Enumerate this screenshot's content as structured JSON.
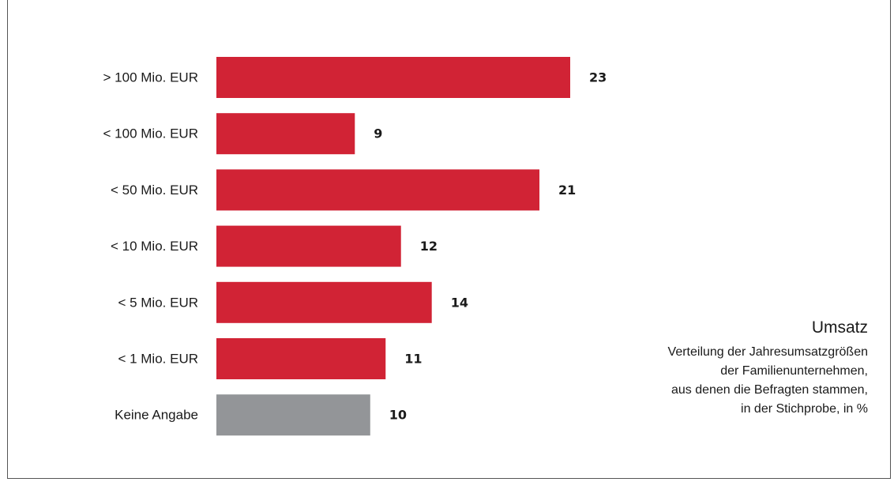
{
  "chart_data": {
    "type": "bar",
    "orientation": "horizontal",
    "categories": [
      "> 100 Mio. EUR",
      "< 100 Mio. EUR",
      "< 50 Mio. EUR",
      "< 10 Mio. EUR",
      "< 5 Mio. EUR",
      "< 1 Mio. EUR",
      "Keine Angabe"
    ],
    "values": [
      23,
      9,
      21,
      12,
      14,
      11,
      10
    ],
    "value_labels": [
      "23",
      "9",
      "21",
      "12",
      "14",
      "11",
      "10"
    ],
    "bar_colors": [
      "#d12335",
      "#d12335",
      "#d12335",
      "#d12335",
      "#d12335",
      "#d12335",
      "#939598"
    ],
    "title": "Umsatz",
    "subtitle_lines": [
      "Verteilung der Jahresumsatzgrößen",
      "der Familienunternehmen,",
      "aus denen die Befragten stammen,",
      "in der Stichprobe, in %"
    ],
    "xlabel": "",
    "ylabel": "",
    "xlim": [
      0,
      23
    ],
    "grid": false,
    "legend": "none"
  },
  "colors": {
    "accent": "#d12335",
    "neutral": "#939598",
    "text": "#1a1a1a"
  }
}
